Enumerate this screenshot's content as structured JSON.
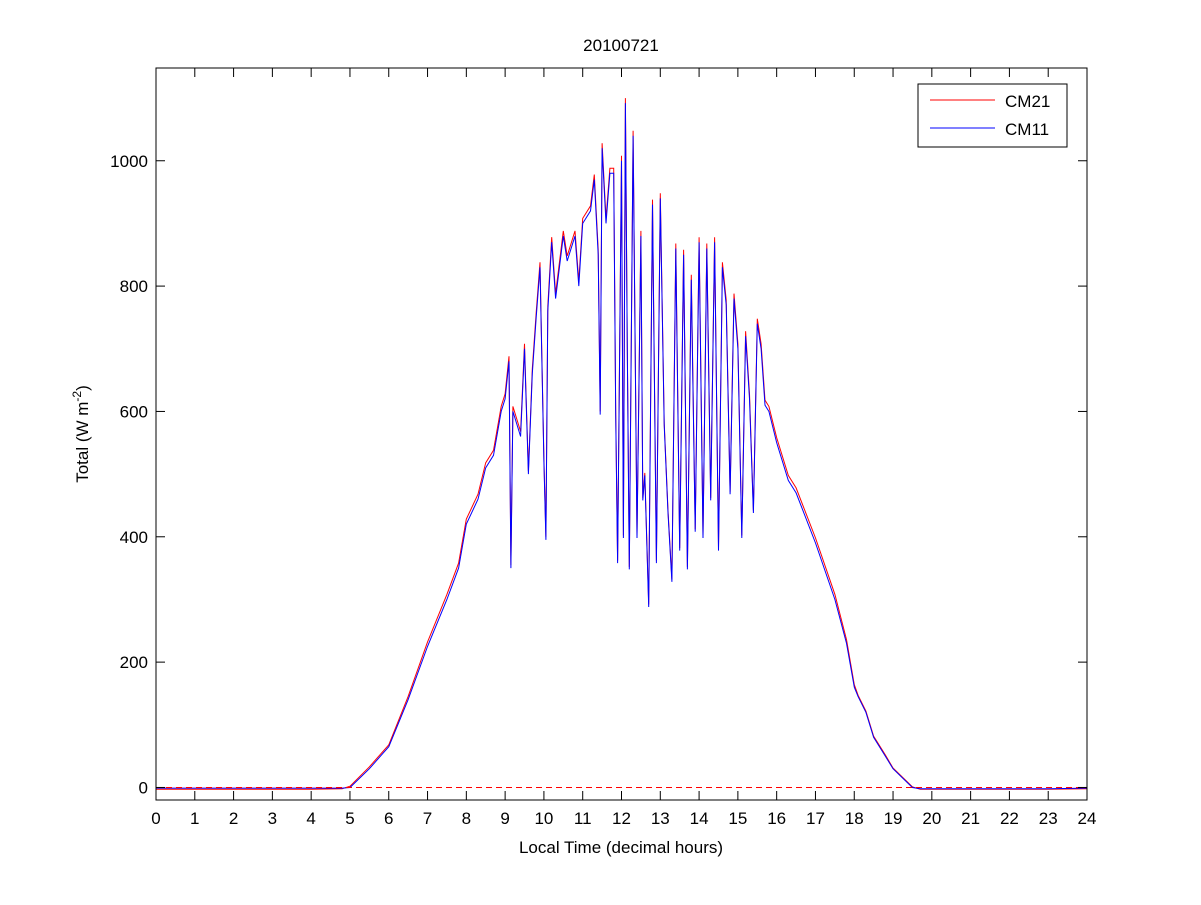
{
  "chart_data": {
    "type": "line",
    "title": "20100721",
    "xlabel": "Local Time (decimal hours)",
    "ylabel": {
      "main": "Total (W m",
      "sup": "-2",
      "close": ")"
    },
    "xlim": [
      0,
      24
    ],
    "ylim": [
      -20,
      1148
    ],
    "xticks": [
      0,
      1,
      2,
      3,
      4,
      5,
      6,
      7,
      8,
      9,
      10,
      11,
      12,
      13,
      14,
      15,
      16,
      17,
      18,
      19,
      20,
      21,
      22,
      23,
      24
    ],
    "yticks": [
      0,
      200,
      400,
      600,
      800,
      1000
    ],
    "grid": false,
    "legend_position": "top-right",
    "reference_line": {
      "value": 0,
      "color": "#ff0000",
      "style": "dashed"
    },
    "x": [
      0,
      1,
      2,
      3,
      4,
      4.8,
      5.0,
      5.5,
      6.0,
      6.5,
      7.0,
      7.5,
      7.8,
      8.0,
      8.3,
      8.5,
      8.7,
      8.9,
      9.0,
      9.1,
      9.15,
      9.2,
      9.4,
      9.5,
      9.6,
      9.7,
      9.8,
      9.9,
      10.0,
      10.05,
      10.1,
      10.2,
      10.3,
      10.5,
      10.6,
      10.8,
      10.9,
      11.0,
      11.2,
      11.3,
      11.4,
      11.45,
      11.5,
      11.6,
      11.7,
      11.8,
      11.85,
      11.9,
      12.0,
      12.05,
      12.1,
      12.15,
      12.2,
      12.3,
      12.4,
      12.5,
      12.55,
      12.6,
      12.7,
      12.8,
      12.9,
      13.0,
      13.1,
      13.2,
      13.3,
      13.4,
      13.5,
      13.6,
      13.7,
      13.8,
      13.9,
      14.0,
      14.1,
      14.2,
      14.3,
      14.4,
      14.5,
      14.6,
      14.7,
      14.8,
      14.9,
      15.0,
      15.1,
      15.2,
      15.3,
      15.4,
      15.5,
      15.6,
      15.7,
      15.8,
      16.0,
      16.3,
      16.5,
      17.0,
      17.5,
      17.8,
      18.0,
      18.1,
      18.3,
      18.5,
      18.8,
      19.0,
      19.5,
      19.7,
      20,
      21,
      22,
      23,
      24
    ],
    "series": [
      {
        "name": "CM21",
        "color": "#ff0000",
        "values": [
          -3,
          -3,
          -3,
          -3,
          -3,
          -2,
          2,
          33,
          68,
          145,
          232,
          308,
          358,
          428,
          468,
          518,
          538,
          608,
          628,
          688,
          355,
          608,
          568,
          708,
          505,
          668,
          758,
          838,
          525,
          400,
          768,
          878,
          788,
          888,
          848,
          888,
          808,
          908,
          928,
          978,
          858,
          600,
          1028,
          908,
          988,
          988,
          600,
          362,
          1008,
          402,
          1100,
          702,
          352,
          1048,
          402,
          888,
          462,
          502,
          292,
          938,
          362,
          948,
          582,
          442,
          332,
          868,
          382,
          858,
          352,
          818,
          412,
          878,
          402,
          868,
          462,
          878,
          382,
          838,
          778,
          472,
          788,
          708,
          402,
          728,
          628,
          442,
          748,
          708,
          618,
          608,
          558,
          498,
          478,
          398,
          308,
          236,
          164,
          147,
          122,
          82,
          52,
          31,
          1,
          -3,
          -3,
          -3,
          -3,
          -3,
          -2
        ]
      },
      {
        "name": "CM11",
        "color": "#0000ff",
        "values": [
          -1,
          -1,
          -1,
          -1,
          -1,
          -1,
          0,
          30,
          65,
          140,
          225,
          300,
          350,
          420,
          460,
          510,
          530,
          600,
          620,
          680,
          350,
          600,
          560,
          700,
          500,
          660,
          750,
          830,
          520,
          395,
          760,
          870,
          780,
          880,
          840,
          880,
          800,
          900,
          920,
          970,
          850,
          595,
          1020,
          900,
          980,
          980,
          595,
          358,
          1000,
          398,
          1092,
          698,
          348,
          1040,
          398,
          880,
          458,
          498,
          288,
          930,
          358,
          940,
          578,
          438,
          328,
          860,
          378,
          850,
          348,
          810,
          408,
          870,
          398,
          860,
          458,
          870,
          378,
          830,
          770,
          468,
          780,
          700,
          398,
          720,
          620,
          438,
          740,
          700,
          610,
          600,
          550,
          490,
          470,
          390,
          300,
          230,
          160,
          145,
          120,
          80,
          50,
          30,
          0,
          -2,
          -2,
          -2,
          -2,
          -2,
          -1
        ]
      }
    ]
  }
}
